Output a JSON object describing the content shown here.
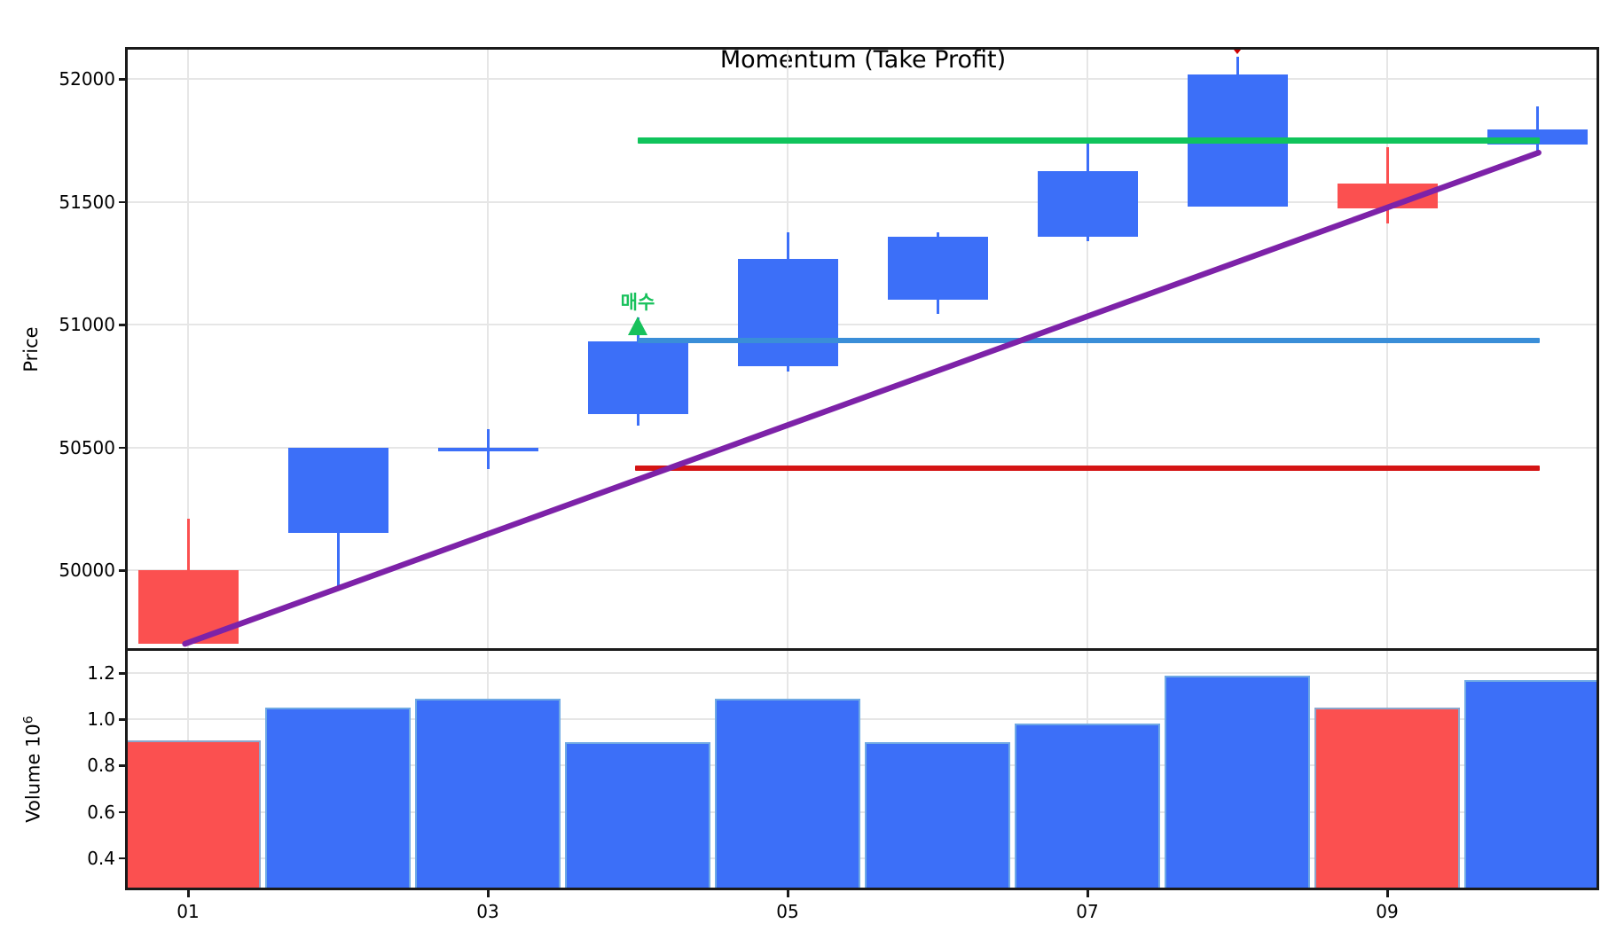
{
  "title": "Momentum (Take Profit)",
  "price_axis": {
    "label": "Price",
    "ticks": [
      {
        "label": "52000",
        "value": 52000
      },
      {
        "label": "51500",
        "value": 51500
      },
      {
        "label": "51000",
        "value": 51000
      },
      {
        "label": "50500",
        "value": 50500
      },
      {
        "label": "50000",
        "value": 50000
      }
    ]
  },
  "volume_axis": {
    "label_base": "Volume  10",
    "label_exponent": "6",
    "ticks": [
      {
        "label": "1.2",
        "value": 1.2
      },
      {
        "label": "1.0",
        "value": 1.0
      },
      {
        "label": "0.8",
        "value": 0.8
      },
      {
        "label": "0.6",
        "value": 0.6
      },
      {
        "label": "0.4",
        "value": 0.4
      }
    ]
  },
  "x_axis": {
    "ticks": [
      {
        "label": "01",
        "day": 1
      },
      {
        "label": "03",
        "day": 3
      },
      {
        "label": "05",
        "day": 5
      },
      {
        "label": "07",
        "day": 7
      },
      {
        "label": "09",
        "day": 9
      }
    ]
  },
  "colors": {
    "up_candle": "#3C6FF8",
    "down_candle": "#FB5050",
    "take_profit_line": "#10C45C",
    "entry_line": "#3A8ED8",
    "stop_loss_line": "#D41414",
    "trend_line": "#7D22A8",
    "buy_annotation": "#17C15B",
    "sell_marker": "#CC0000",
    "grid": "#E6E6E6"
  },
  "chart_data": {
    "type": "candlestick_with_volume",
    "title": "Momentum (Take Profit)",
    "price_range_shown": [
      49675,
      52123
    ],
    "volume_range_shown": [
      0.265,
      1.3
    ],
    "volume_unit": "1e6",
    "candles": [
      {
        "day": 1,
        "open": 50000,
        "high": 50210,
        "low": 49700,
        "close": 49700,
        "direction": "down",
        "volume": 0.91
      },
      {
        "day": 2,
        "open": 50150,
        "high": 50500,
        "low": 49930,
        "close": 50500,
        "direction": "up",
        "volume": 1.05
      },
      {
        "day": 3,
        "open": 50490,
        "high": 50575,
        "low": 50410,
        "close": 50490,
        "direction": "up",
        "volume": 1.09
      },
      {
        "day": 4,
        "open": 50635,
        "high": 51030,
        "low": 50590,
        "close": 50930,
        "direction": "up",
        "volume": 0.9
      },
      {
        "day": 5,
        "open": 50830,
        "high": 51375,
        "low": 50810,
        "close": 51267,
        "direction": "up",
        "volume": 1.09
      },
      {
        "day": 6,
        "open": 51101,
        "high": 51375,
        "low": 51044,
        "close": 51358,
        "direction": "up",
        "volume": 0.9
      },
      {
        "day": 7,
        "open": 51358,
        "high": 51735,
        "low": 51340,
        "close": 51625,
        "direction": "up",
        "volume": 0.98
      },
      {
        "day": 8,
        "open": 51480,
        "high": 52090,
        "low": 51480,
        "close": 52018,
        "direction": "up",
        "volume": 1.19
      },
      {
        "day": 9,
        "open": 51574,
        "high": 51722,
        "low": 51412,
        "close": 51473,
        "direction": "down",
        "volume": 1.05
      },
      {
        "day": 10,
        "open": 51733,
        "high": 51888,
        "low": 51700,
        "close": 51794,
        "direction": "up",
        "volume": 1.17
      }
    ],
    "levels": [
      {
        "name": "take-profit",
        "price": 51750,
        "from_day": 4.0,
        "to_day": 10.02,
        "color": "#10C45C",
        "width": 7
      },
      {
        "name": "entry",
        "price": 50935,
        "from_day": 4.0,
        "to_day": 10.02,
        "color": "#3A8ED8",
        "width": 6
      },
      {
        "name": "stop-loss",
        "price": 50415,
        "from_day": 3.98,
        "to_day": 10.02,
        "color": "#D41414",
        "width": 6
      }
    ],
    "trend_line": {
      "from_day": 0.98,
      "from_price": 49700,
      "to_day": 10.01,
      "to_price": 51700,
      "color": "#7D22A8",
      "width": 6.5
    },
    "annotations": [
      {
        "text": "매수",
        "day": 4,
        "arrow_tip_price": 51032,
        "color": "#17C15B",
        "shape": "triangle-up"
      }
    ],
    "markers": [
      {
        "name": "clipped-sell-marker",
        "day": 8,
        "shape": "triangle-down",
        "color": "#CC0000"
      }
    ]
  }
}
